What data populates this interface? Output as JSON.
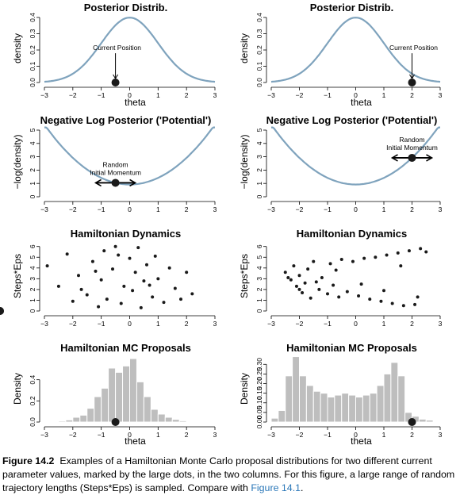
{
  "colors": {
    "curve": "#7fa3bd",
    "traj": "#7fa3bd",
    "bar": "#bebebe",
    "dot": "#1a1a1a",
    "link": "#2a77b8"
  },
  "chart_data": [
    {
      "id": "post-left",
      "type": "line",
      "title": "Posterior Distrib.",
      "xlabel": "theta",
      "ylabel": "density",
      "xlim": [
        -3,
        3
      ],
      "ylim": [
        0,
        0.4
      ],
      "xticks": [
        -3,
        -2,
        -1,
        0,
        1,
        2,
        3
      ],
      "yticks": [
        0.0,
        0.1,
        0.2,
        0.3,
        0.4
      ],
      "curve": "normal_pdf",
      "current_position": -0.5,
      "annotation": "Current Position"
    },
    {
      "id": "post-right",
      "type": "line",
      "title": "Posterior Distrib.",
      "xlabel": "theta",
      "ylabel": "density",
      "xlim": [
        -3,
        3
      ],
      "ylim": [
        0,
        0.4
      ],
      "xticks": [
        -3,
        -2,
        -1,
        0,
        1,
        2,
        3
      ],
      "yticks": [
        0.0,
        0.1,
        0.2,
        0.3,
        0.4
      ],
      "curve": "normal_pdf",
      "current_position": 2.0,
      "annotation": "Current Position"
    },
    {
      "id": "pot-left",
      "type": "line",
      "title": "Negative Log Posterior ('Potential')",
      "xlabel": "",
      "ylabel": "−log(density)",
      "xlim": [
        -3,
        3
      ],
      "ylim": [
        0,
        5
      ],
      "xticks": [
        -3,
        -2,
        -1,
        0,
        1,
        2,
        3
      ],
      "yticks": [
        0,
        1,
        2,
        3,
        4,
        5
      ],
      "curve": "neg_log_normal",
      "current_position": -0.5,
      "annotation": [
        "Random",
        "Initial Momentum"
      ]
    },
    {
      "id": "pot-right",
      "type": "line",
      "title": "Negative Log Posterior ('Potential')",
      "xlabel": "",
      "ylabel": "−log(density)",
      "xlim": [
        -3,
        3
      ],
      "ylim": [
        0,
        5
      ],
      "xticks": [
        -3,
        -2,
        -1,
        0,
        1,
        2,
        3
      ],
      "yticks": [
        0,
        1,
        2,
        3,
        4,
        5
      ],
      "curve": "neg_log_normal",
      "current_position": 2.0,
      "annotation": [
        "Random",
        "Initial Momentum"
      ]
    },
    {
      "id": "ham-left",
      "type": "line",
      "title": "Hamiltonian Dynamics",
      "xlabel": "",
      "ylabel": "Steps*Eps",
      "xlim": [
        -3,
        3
      ],
      "ylim": [
        0,
        6.2
      ],
      "xticks": [
        -3,
        -2,
        -1,
        0,
        1,
        2,
        3
      ],
      "yticks": [
        0,
        1,
        2,
        3,
        4,
        5,
        6
      ],
      "start": -0.5,
      "momenta": [
        -2.3,
        -1.9,
        -1.6,
        -1.3,
        -1.0,
        -0.75,
        -0.5,
        -0.3,
        0.3,
        0.5,
        0.75,
        1.0,
        1.3,
        1.6,
        1.9,
        2.3
      ],
      "end_points": [
        [
          -2.9,
          4.2
        ],
        [
          -2.5,
          2.3
        ],
        [
          -2.2,
          5.3
        ],
        [
          -2.0,
          0.9
        ],
        [
          -1.8,
          3.3
        ],
        [
          -1.5,
          1.5
        ],
        [
          -1.3,
          4.6
        ],
        [
          -1.1,
          0.4
        ],
        [
          -1.0,
          2.9
        ],
        [
          -0.9,
          5.6
        ],
        [
          -0.8,
          1.1
        ],
        [
          -0.6,
          3.9
        ],
        [
          -0.5,
          6.0
        ],
        [
          -0.3,
          0.7
        ],
        [
          -0.2,
          2.3
        ],
        [
          0.0,
          4.9
        ],
        [
          0.1,
          1.9
        ],
        [
          0.2,
          3.6
        ],
        [
          0.3,
          5.9
        ],
        [
          0.4,
          0.3
        ],
        [
          0.5,
          2.8
        ],
        [
          0.6,
          4.3
        ],
        [
          0.8,
          1.3
        ],
        [
          0.9,
          5.1
        ],
        [
          1.0,
          3.0
        ],
        [
          1.2,
          0.8
        ],
        [
          1.4,
          4.0
        ],
        [
          1.6,
          2.1
        ],
        [
          1.8,
          1.1
        ],
        [
          2.0,
          3.6
        ],
        [
          2.2,
          1.6
        ],
        [
          -1.7,
          2.0
        ],
        [
          -0.4,
          5.2
        ],
        [
          0.7,
          2.4
        ],
        [
          -1.2,
          3.7
        ]
      ]
    },
    {
      "id": "ham-right",
      "type": "line",
      "title": "Hamiltonian Dynamics",
      "xlabel": "",
      "ylabel": "Steps*Eps",
      "xlim": [
        -3,
        3
      ],
      "ylim": [
        0,
        6.2
      ],
      "xticks": [
        -3,
        -2,
        -1,
        0,
        1,
        2,
        3
      ],
      "yticks": [
        0,
        1,
        2,
        3,
        4,
        5,
        6
      ],
      "start": 2.0,
      "momenta": [
        -1.3,
        -1.1,
        -0.9,
        -0.7,
        -0.5,
        -0.3,
        -0.15,
        0.15,
        0.3,
        0.5,
        0.7,
        0.9,
        1.1,
        1.3
      ],
      "end_points": [
        [
          -2.5,
          3.6
        ],
        [
          -2.3,
          2.9
        ],
        [
          -2.2,
          4.2
        ],
        [
          -2.1,
          2.3
        ],
        [
          -2.0,
          3.3
        ],
        [
          -1.9,
          1.7
        ],
        [
          -1.8,
          2.6
        ],
        [
          -1.7,
          3.9
        ],
        [
          -1.6,
          1.2
        ],
        [
          -1.5,
          4.6
        ],
        [
          -1.3,
          2.0
        ],
        [
          -1.2,
          3.1
        ],
        [
          -1.0,
          1.6
        ],
        [
          -0.9,
          4.4
        ],
        [
          -0.8,
          2.4
        ],
        [
          -0.6,
          1.3
        ],
        [
          -0.5,
          4.8
        ],
        [
          -0.3,
          1.8
        ],
        [
          -0.1,
          4.6
        ],
        [
          0.1,
          1.4
        ],
        [
          0.3,
          4.9
        ],
        [
          0.5,
          1.1
        ],
        [
          0.7,
          5.0
        ],
        [
          0.9,
          0.9
        ],
        [
          1.1,
          5.2
        ],
        [
          1.3,
          0.7
        ],
        [
          1.5,
          5.4
        ],
        [
          1.7,
          0.5
        ],
        [
          1.9,
          5.6
        ],
        [
          2.1,
          0.6
        ],
        [
          2.3,
          5.8
        ],
        [
          2.5,
          5.5
        ],
        [
          -2.4,
          3.1
        ],
        [
          -1.4,
          2.7
        ],
        [
          -0.7,
          3.8
        ],
        [
          0.2,
          2.5
        ],
        [
          1.0,
          1.9
        ],
        [
          1.6,
          4.2
        ],
        [
          2.2,
          1.3
        ],
        [
          -2.0,
          2.0
        ]
      ]
    },
    {
      "id": "hist-left",
      "type": "bar",
      "title": "Hamiltonian MC Proposals",
      "xlabel": "theta",
      "ylabel": "Density",
      "xlim": [
        -3,
        3
      ],
      "ylim": [
        0,
        0.6
      ],
      "xticks": [
        -3,
        -2,
        -1,
        0,
        1,
        2,
        3
      ],
      "yticks": [
        0.0,
        0.2,
        0.4
      ],
      "bin_edges": [
        -2.75,
        -2.5,
        -2.25,
        -2.0,
        -1.75,
        -1.5,
        -1.25,
        -1.0,
        -0.75,
        -0.5,
        -0.25,
        0.0,
        0.25,
        0.5,
        0.75,
        1.0,
        1.25,
        1.5,
        1.75,
        2.0,
        2.25,
        2.5
      ],
      "values": [
        0.005,
        0.01,
        0.02,
        0.045,
        0.065,
        0.13,
        0.24,
        0.32,
        0.51,
        0.47,
        0.53,
        0.6,
        0.38,
        0.24,
        0.12,
        0.075,
        0.045,
        0.025,
        0.012,
        0.007,
        0.004
      ],
      "current_position": -0.5
    },
    {
      "id": "hist-right",
      "type": "bar",
      "title": "Hamiltonian MC Proposals",
      "xlabel": "theta",
      "ylabel": "Density",
      "xlim": [
        -3,
        3
      ],
      "ylim": [
        0,
        0.33
      ],
      "xticks": [
        -3,
        -2,
        -1,
        0,
        1,
        2,
        3
      ],
      "yticks": [
        0.0,
        0.05,
        0.1,
        0.15,
        0.2,
        0.25,
        0.3
      ],
      "bin_edges": [
        -3.0,
        -2.75,
        -2.5,
        -2.25,
        -2.0,
        -1.75,
        -1.5,
        -1.25,
        -1.0,
        -0.75,
        -0.5,
        -0.25,
        0.0,
        0.25,
        0.5,
        0.75,
        1.0,
        1.25,
        1.5,
        1.75,
        2.0,
        2.25,
        2.5,
        2.75
      ],
      "values": [
        0.02,
        0.06,
        0.24,
        0.34,
        0.24,
        0.19,
        0.16,
        0.15,
        0.13,
        0.14,
        0.15,
        0.14,
        0.13,
        0.14,
        0.15,
        0.19,
        0.25,
        0.31,
        0.24,
        0.05,
        0.03,
        0.015,
        0.01
      ],
      "current_position": 2.0
    }
  ],
  "caption": {
    "label": "Figure 14.2",
    "text": "Examples of a Hamiltonian Monte Carlo proposal distributions for two different current parameter values, marked by the large dots, in the two columns. For this figure, a large range of random trajectory lengths (Steps*Eps) is sampled. Compare with ",
    "ref": "Figure 14.1",
    "end": "."
  }
}
